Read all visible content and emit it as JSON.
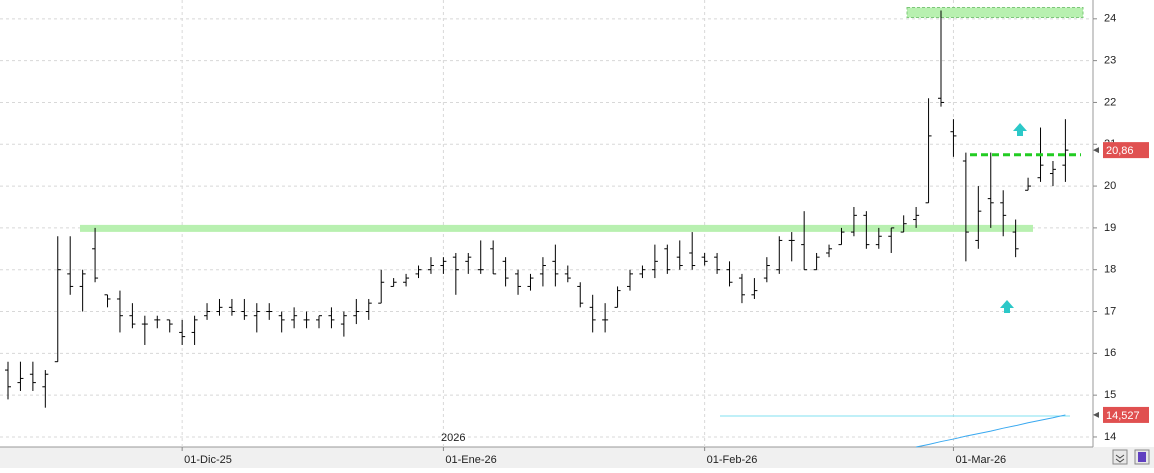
{
  "chart_data": {
    "type": "ohlc",
    "categories": [
      null,
      null,
      null,
      null,
      null,
      null,
      null,
      null,
      null,
      null,
      null,
      null,
      null,
      null,
      "01-Dic-25",
      null,
      null,
      null,
      null,
      null,
      null,
      null,
      null,
      null,
      null,
      null,
      null,
      null,
      null,
      null,
      null,
      null,
      null,
      null,
      null,
      "01-Ene-26",
      null,
      null,
      null,
      null,
      null,
      null,
      null,
      null,
      null,
      null,
      null,
      null,
      null,
      null,
      null,
      null,
      null,
      null,
      null,
      null,
      "01-Feb-26",
      null,
      null,
      null,
      null,
      null,
      null,
      null,
      null,
      null,
      null,
      null,
      null,
      null,
      null,
      null,
      null,
      null,
      null,
      null,
      "01-Mar-26",
      null,
      null,
      null,
      null,
      null,
      null,
      null,
      null,
      null
    ],
    "open": [
      15.6,
      15.3,
      15.5,
      15.2,
      15.8,
      17.9,
      17.6,
      18.5,
      17.4,
      17.3,
      16.9,
      16.7,
      16.8,
      16.8,
      16.5,
      16.5,
      16.9,
      17.0,
      17.1,
      17.0,
      16.9,
      17.0,
      16.9,
      16.8,
      16.8,
      16.8,
      16.9,
      16.7,
      16.9,
      17.0,
      17.2,
      17.6,
      17.7,
      17.9,
      18.0,
      18.1,
      18.3,
      18.2,
      18.0,
      18.5,
      18.2,
      17.9,
      17.6,
      17.9,
      18.2,
      17.9,
      17.6,
      17.1,
      16.8,
      17.1,
      17.6,
      17.9,
      18.0,
      18.5,
      18.3,
      18.4,
      18.3,
      18.3,
      18.0,
      17.8,
      17.4,
      17.8,
      18.0,
      18.7,
      18.6,
      18.0,
      18.4,
      18.6,
      18.9,
      19.3,
      18.6,
      18.8,
      18.9,
      19.2,
      19.6,
      22.1,
      21.3,
      20.6,
      18.7,
      19.7,
      19.6,
      18.9,
      19.9,
      20.2,
      20.3,
      20.5
    ],
    "high": [
      15.8,
      15.8,
      15.8,
      15.6,
      18.8,
      18.8,
      18.0,
      19.0,
      17.4,
      17.5,
      17.2,
      16.9,
      16.9,
      16.8,
      16.8,
      16.9,
      17.2,
      17.3,
      17.3,
      17.3,
      17.2,
      17.2,
      17.0,
      17.1,
      17.0,
      16.9,
      17.1,
      17.0,
      17.3,
      17.3,
      18.0,
      17.8,
      17.9,
      18.1,
      18.3,
      18.3,
      18.4,
      18.4,
      18.7,
      18.7,
      18.3,
      18.0,
      17.9,
      18.3,
      18.6,
      18.1,
      17.7,
      17.4,
      17.2,
      17.6,
      18.0,
      18.1,
      18.6,
      18.6,
      18.7,
      18.9,
      18.4,
      18.4,
      18.2,
      17.9,
      17.8,
      18.3,
      18.8,
      18.9,
      19.4,
      18.4,
      18.6,
      19.0,
      19.5,
      19.4,
      19.0,
      19.0,
      19.3,
      19.5,
      22.1,
      24.2,
      21.6,
      20.8,
      20.0,
      20.8,
      19.9,
      19.2,
      20.2,
      21.4,
      20.6,
      21.6
    ],
    "low": [
      14.9,
      15.1,
      15.1,
      14.7,
      15.8,
      17.4,
      17.0,
      17.7,
      17.1,
      16.5,
      16.6,
      16.2,
      16.6,
      16.5,
      16.2,
      16.2,
      16.8,
      16.9,
      16.9,
      16.8,
      16.5,
      16.8,
      16.5,
      16.6,
      16.6,
      16.6,
      16.6,
      16.4,
      16.7,
      16.8,
      17.2,
      17.6,
      17.6,
      17.8,
      17.9,
      17.9,
      17.4,
      17.9,
      17.9,
      17.9,
      17.6,
      17.4,
      17.5,
      17.6,
      17.6,
      17.7,
      17.1,
      16.5,
      16.5,
      17.1,
      17.5,
      17.8,
      17.8,
      17.9,
      18.0,
      18.0,
      18.1,
      17.9,
      17.6,
      17.2,
      17.3,
      17.7,
      17.9,
      18.2,
      18.0,
      18.0,
      18.3,
      18.6,
      18.8,
      18.5,
      18.5,
      18.4,
      18.9,
      19.0,
      19.6,
      21.9,
      20.7,
      18.2,
      18.5,
      19.0,
      18.8,
      18.3,
      19.9,
      20.1,
      20.0,
      20.1
    ],
    "close": [
      15.2,
      15.4,
      15.3,
      15.5,
      18.0,
      17.6,
      17.9,
      17.8,
      17.3,
      16.9,
      16.7,
      16.7,
      16.8,
      16.7,
      16.4,
      16.8,
      17.0,
      17.1,
      17.0,
      16.9,
      17.0,
      17.0,
      16.8,
      16.9,
      16.8,
      16.9,
      16.8,
      16.9,
      17.0,
      17.2,
      17.7,
      17.7,
      17.8,
      18.0,
      18.1,
      18.2,
      18.0,
      18.3,
      18.0,
      17.9,
      17.8,
      17.6,
      17.8,
      18.1,
      17.9,
      17.8,
      17.2,
      16.8,
      16.8,
      17.5,
      17.9,
      18.0,
      18.2,
      18.0,
      18.1,
      18.1,
      18.2,
      18.0,
      17.7,
      17.4,
      17.5,
      18.1,
      18.7,
      18.7,
      18.0,
      18.3,
      18.5,
      18.9,
      19.3,
      18.6,
      18.8,
      19.0,
      19.1,
      19.3,
      21.2,
      22.0,
      21.2,
      18.9,
      19.4,
      19.6,
      19.3,
      18.5,
      20.0,
      20.5,
      20.4,
      20.86
    ],
    "color": "#000000",
    "indicator": {
      "color": "#38a8f0",
      "values": [
        null,
        null,
        null,
        null,
        null,
        null,
        null,
        null,
        null,
        null,
        null,
        null,
        null,
        null,
        null,
        null,
        null,
        null,
        null,
        null,
        null,
        null,
        null,
        null,
        null,
        null,
        null,
        null,
        null,
        null,
        null,
        null,
        null,
        null,
        null,
        null,
        null,
        null,
        null,
        null,
        null,
        null,
        null,
        null,
        null,
        null,
        null,
        null,
        null,
        null,
        null,
        null,
        null,
        null,
        null,
        null,
        null,
        null,
        null,
        null,
        null,
        null,
        null,
        null,
        null,
        null,
        null,
        null,
        null,
        null,
        null,
        null,
        null,
        13.76,
        13.82,
        13.89,
        13.95,
        14.02,
        14.08,
        14.14,
        14.21,
        14.27,
        14.34,
        14.4,
        14.46,
        14.527
      ],
      "last_label": {
        "value": 14.527,
        "label": "14,527"
      }
    },
    "last_price": {
      "value": 20.86,
      "label": "20,86",
      "color": "#e05050"
    },
    "hlines": [
      {
        "value": 19.0,
        "color": "#b8f0b0",
        "style": "band"
      },
      {
        "value": 20.75,
        "color": "#22cc22",
        "style": "dashed"
      },
      {
        "value": 24.15,
        "color": "#b8f0b0",
        "style": "box"
      },
      {
        "value": 14.5,
        "color": "#80e0f0",
        "style": "thin"
      }
    ],
    "annotations": [
      {
        "text": "2026"
      }
    ],
    "ylim": [
      13.76,
      24.45
    ],
    "yticks": [
      14,
      15,
      16,
      17,
      18,
      19,
      20,
      21,
      22,
      23,
      24
    ],
    "grid": true
  }
}
